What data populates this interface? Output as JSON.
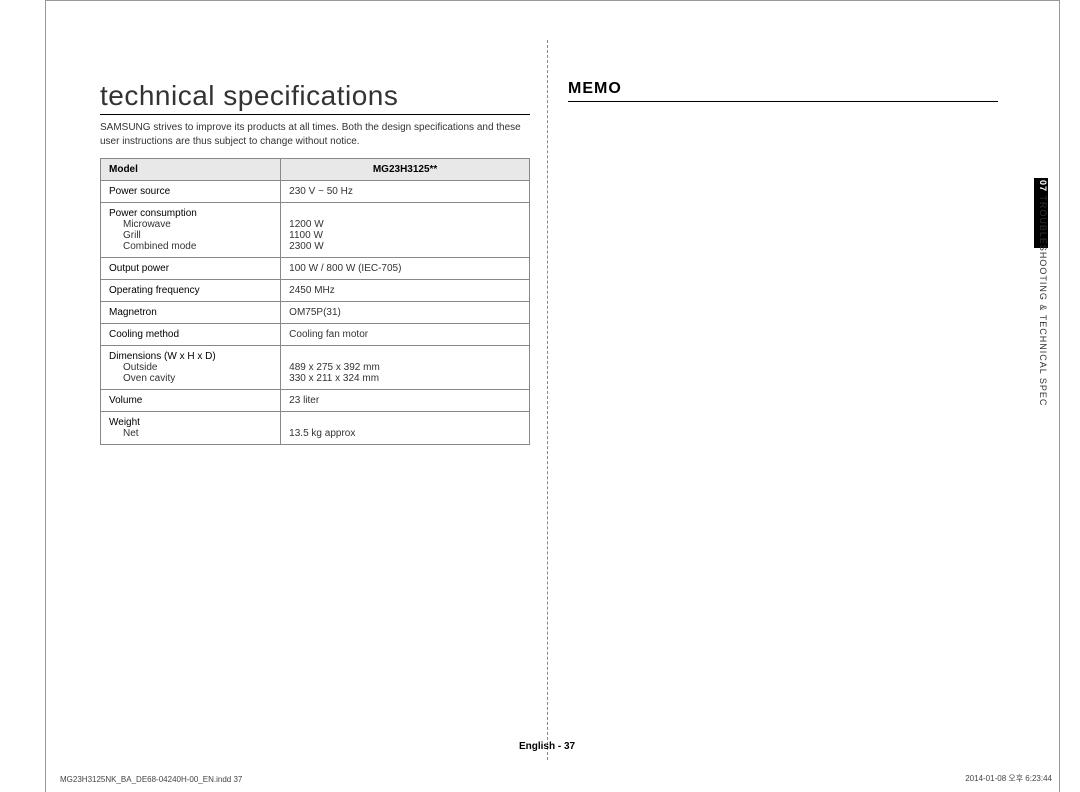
{
  "left": {
    "title": "technical specifications",
    "intro": "SAMSUNG strives to improve its products at all times. Both the design specifications and these user instructions are thus subject to change without notice.",
    "table": {
      "header_left": "Model",
      "header_right": "MG23H3125**",
      "rows": [
        {
          "labels": [
            "Power source"
          ],
          "subs": [],
          "values": [
            "230 V ~ 50 Hz"
          ]
        },
        {
          "labels": [
            "Power consumption"
          ],
          "subs": [
            "Microwave",
            "Grill",
            "Combined mode"
          ],
          "values": [
            "",
            "1200 W",
            "1100 W",
            "2300 W"
          ]
        },
        {
          "labels": [
            "Output power"
          ],
          "subs": [],
          "values": [
            "100 W / 800 W (IEC-705)"
          ]
        },
        {
          "labels": [
            "Operating frequency"
          ],
          "subs": [],
          "values": [
            "2450 MHz"
          ]
        },
        {
          "labels": [
            "Magnetron"
          ],
          "subs": [],
          "values": [
            "OM75P(31)"
          ]
        },
        {
          "labels": [
            "Cooling method"
          ],
          "subs": [],
          "values": [
            "Cooling fan motor"
          ]
        },
        {
          "labels": [
            "Dimensions (W x H x D)"
          ],
          "subs": [
            "Outside",
            "Oven cavity"
          ],
          "values": [
            "",
            "489 x 275 x 392 mm",
            "330 x 211 x 324 mm"
          ]
        },
        {
          "labels": [
            "Volume"
          ],
          "subs": [],
          "values": [
            "23 liter"
          ]
        },
        {
          "labels": [
            "Weight"
          ],
          "subs": [
            "Net"
          ],
          "values": [
            "",
            "13.5 kg approx"
          ]
        }
      ]
    }
  },
  "right": {
    "memo_title": "MEMO",
    "tab_num": "07",
    "tab_text": " TROUBLESHOOTING & TECHNICAL SPEC"
  },
  "footer": {
    "lang": "English - 37",
    "file": "MG23H3125NK_BA_DE68-04240H-00_EN.indd   37",
    "date": "2014-01-08   오후 6:23:44"
  },
  "colors": {
    "border": "#888888",
    "header_bg": "#e8e8e8",
    "text": "#333333",
    "black": "#000000"
  }
}
